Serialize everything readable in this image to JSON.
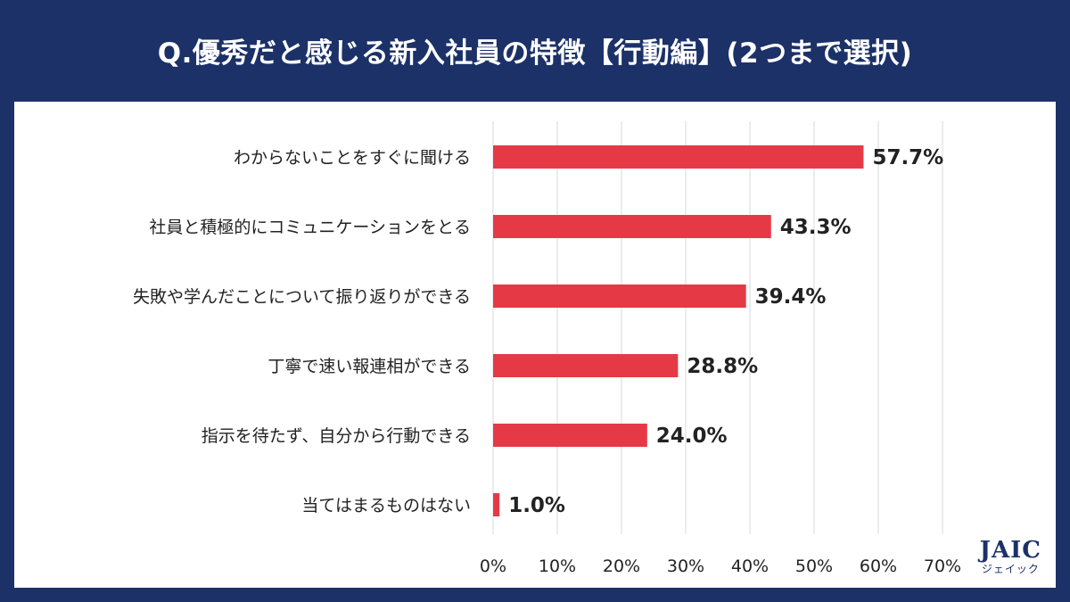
{
  "title": "Q.優秀だと感じる新入社員の特徴【行動編】(2つまで選択)",
  "logo": {
    "main": "JAIC",
    "sub": "ジェイック"
  },
  "colors": {
    "bar": "#e63946",
    "background": "#1b3168",
    "panel": "#ffffff",
    "grid": "#d9d9d9",
    "text": "#222222"
  },
  "chart_data": {
    "type": "bar",
    "orientation": "horizontal",
    "categories": [
      "わからないことをすぐに聞ける",
      "社員と積極的にコミュニケーションをとる",
      "失敗や学んだことについて振り返りができる",
      "丁寧で速い報連相ができる",
      "指示を待たず、自分から行動できる",
      "当てはまるものはない"
    ],
    "values": [
      57.7,
      43.3,
      39.4,
      28.8,
      24.0,
      1.0
    ],
    "value_labels": [
      "57.7%",
      "43.3%",
      "39.4%",
      "28.8%",
      "24.0%",
      "1.0%"
    ],
    "xlim": [
      0,
      70
    ],
    "xticks": [
      "0%",
      "10%",
      "20%",
      "30%",
      "40%",
      "50%",
      "60%",
      "70%"
    ],
    "grid": true,
    "title": "Q.優秀だと感じる新入社員の特徴【行動編】(2つまで選択)"
  }
}
